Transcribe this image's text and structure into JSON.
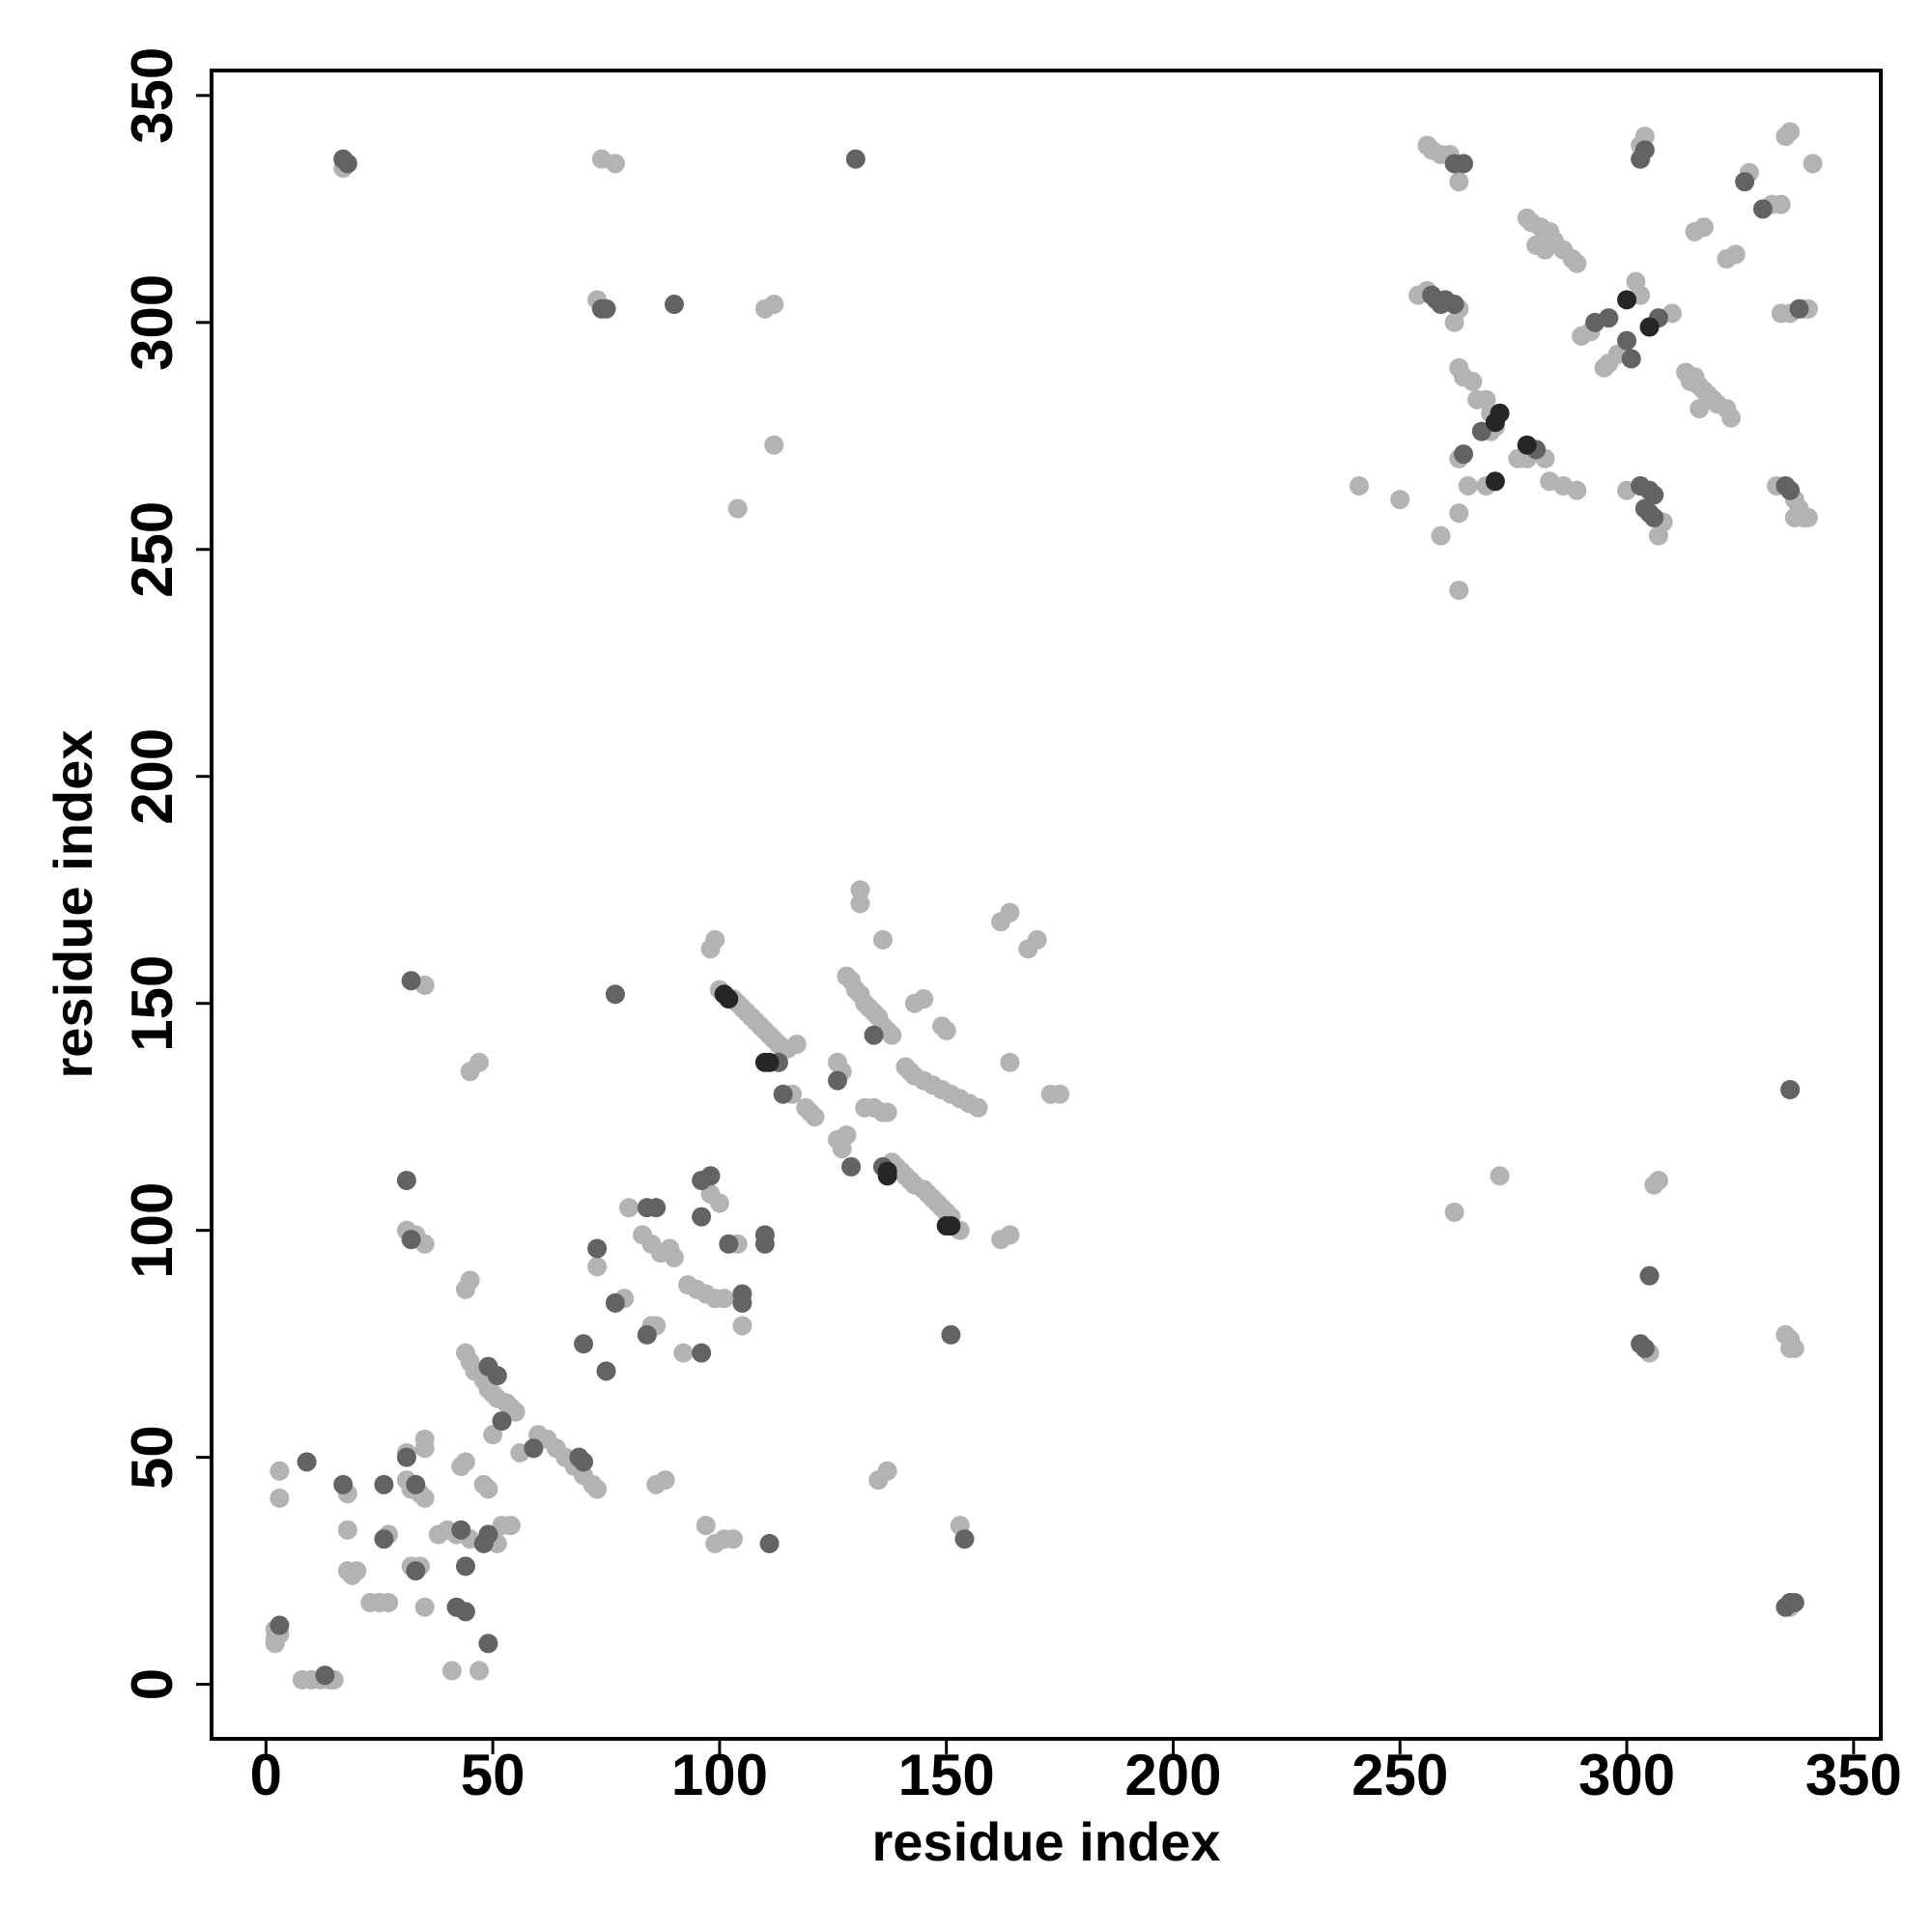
{
  "chart_data": {
    "type": "scatter",
    "xlabel": "residue index",
    "ylabel": "residue index",
    "xlim": [
      -12,
      356
    ],
    "ylim": [
      -12,
      355.5
    ],
    "xticks": [
      0,
      50,
      100,
      150,
      200,
      250,
      300,
      350
    ],
    "yticks": [
      0,
      50,
      100,
      150,
      200,
      250,
      300,
      350
    ],
    "grid": false,
    "series": [
      {
        "color": "#b3b3b3",
        "x": [
          2,
          2,
          3,
          2,
          8,
          10,
          12,
          14,
          15,
          3,
          3,
          18,
          18,
          18,
          19,
          20,
          23,
          25,
          27,
          27,
          31,
          31,
          32,
          34,
          35,
          32,
          34,
          35,
          31,
          33,
          35,
          35,
          35,
          35,
          38,
          40,
          42,
          45,
          41,
          47,
          44,
          43,
          44,
          45,
          45,
          47,
          44,
          45,
          46,
          48,
          49,
          50,
          51,
          53,
          54,
          55,
          50,
          48,
          49,
          51,
          52,
          54,
          56,
          60,
          62,
          64,
          66,
          68,
          70,
          72,
          73,
          73,
          79,
          80,
          85,
          86,
          83,
          85,
          87,
          89,
          90,
          86,
          88,
          92,
          93,
          95,
          97,
          99,
          101,
          98,
          100,
          99,
          101,
          103,
          97,
          104,
          105,
          98,
          99,
          100,
          103,
          104,
          105,
          106,
          107,
          108,
          109,
          110,
          111,
          112,
          113,
          115,
          117,
          116,
          119,
          120,
          121,
          112,
          110,
          112,
          104,
          126,
          127,
          128,
          126,
          127,
          128,
          129,
          130,
          131,
          132,
          133,
          134,
          135,
          136,
          137,
          138,
          131,
          131,
          132,
          134,
          136,
          137,
          136,
          138,
          139,
          140,
          141,
          142,
          143,
          145,
          146,
          147,
          148,
          149,
          150,
          151,
          141,
          142,
          143,
          145,
          147,
          149,
          151,
          153,
          155,
          157,
          143,
          145,
          149,
          150,
          153,
          153,
          135,
          137,
          162,
          164,
          162,
          164,
          168,
          170,
          164,
          173,
          175,
          17,
          74,
          77,
          73,
          241,
          250,
          254,
          256,
          256,
          257,
          259,
          261,
          263,
          262,
          263,
          263,
          264,
          266,
          267,
          263,
          265,
          259,
          263,
          263,
          269,
          270,
          271,
          270,
          269,
          276,
          278,
          282,
          278,
          279,
          281,
          283,
          284,
          286,
          288,
          289,
          280,
          282,
          283,
          286,
          289,
          290,
          292,
          295,
          296,
          298,
          303,
          302,
          310,
          300,
          307,
          308,
          304,
          303,
          313,
          314,
          315,
          316,
          317,
          318,
          319,
          320,
          322,
          323,
          316,
          315,
          317,
          322,
          324,
          327,
          332,
          334,
          333,
          337,
          338,
          334,
          336,
          339,
          340,
          337,
          339,
          340,
          335,
          336,
          341,
          262,
          272,
          306,
          307,
          305,
          335,
          336,
          336,
          337,
          336
        ],
        "y": [
          12,
          10,
          11,
          9,
          1,
          1,
          1,
          1,
          1,
          47,
          41,
          42,
          34,
          25,
          24,
          25,
          18,
          18,
          18,
          33,
          51,
          45,
          43,
          42,
          41,
          26,
          26,
          17,
          100,
          99,
          97,
          154,
          54,
          52,
          33,
          34,
          33,
          32,
          3,
          3,
          49,
          48,
          87,
          89,
          135,
          137,
          73,
          71,
          69,
          67,
          65,
          64,
          63,
          62,
          61,
          60,
          55,
          44,
          43,
          31,
          35,
          35,
          51,
          55,
          54,
          52,
          50,
          48,
          46,
          44,
          43,
          92,
          85,
          105,
          79,
          79,
          99,
          97,
          95,
          96,
          94,
          44,
          45,
          73,
          88,
          87,
          86,
          85,
          85,
          108,
          106,
          31,
          32,
          32,
          35,
          97,
          79,
          162,
          164,
          153,
          151,
          150,
          149,
          148,
          147,
          146,
          145,
          144,
          143,
          142,
          141,
          140,
          141,
          130,
          127,
          126,
          125,
          304,
          303,
          273,
          259,
          120,
          118,
          121,
          137,
          135,
          156,
          155,
          153,
          152,
          150,
          149,
          148,
          147,
          145,
          144,
          143,
          175,
          172,
          127,
          127,
          126,
          126,
          164,
          115,
          114,
          113,
          112,
          111,
          110,
          109,
          108,
          107,
          106,
          105,
          104,
          103,
          136,
          135,
          134,
          133,
          132,
          131,
          130,
          129,
          128,
          127,
          150,
          151,
          145,
          144,
          100,
          35,
          45,
          47,
          98,
          99,
          168,
          170,
          162,
          164,
          137,
          130,
          130,
          334,
          336,
          335,
          305,
          264,
          261,
          306,
          307,
          339,
          338,
          337,
          337,
          331,
          300,
          303,
          290,
          288,
          287,
          283,
          270,
          264,
          253,
          258,
          241,
          283,
          280,
          277,
          276,
          264,
          270,
          270,
          270,
          323,
          322,
          321,
          320,
          318,
          316,
          314,
          313,
          317,
          316,
          265,
          264,
          263,
          297,
          298,
          290,
          291,
          293,
          306,
          309,
          302,
          263,
          253,
          256,
          341,
          339,
          289,
          287,
          288,
          286,
          285,
          284,
          283,
          282,
          281,
          279,
          281,
          320,
          321,
          314,
          315,
          333,
          326,
          326,
          264,
          261,
          259,
          302,
          302,
          303,
          303,
          257,
          257,
          257,
          341,
          342,
          335,
          104,
          112,
          110,
          111,
          73,
          77,
          76,
          74,
          74,
          17
        ]
      },
      {
        "color": "#636363",
        "x": [
          3,
          13,
          9,
          17,
          26,
          26,
          31,
          33,
          33,
          31,
          32,
          32,
          43,
          44,
          42,
          44,
          49,
          51,
          52,
          49,
          48,
          49,
          59,
          69,
          70,
          70,
          73,
          75,
          77,
          84,
          84,
          86,
          96,
          96,
          96,
          98,
          111,
          102,
          110,
          105,
          105,
          113,
          114,
          129,
          126,
          134,
          136,
          151,
          154,
          77,
          18,
          17,
          130,
          74,
          75,
          90,
          257,
          258,
          259,
          260,
          262,
          262,
          264,
          264,
          268,
          280,
          293,
          296,
          300,
          301,
          307,
          303,
          305,
          306,
          304,
          305,
          306,
          304,
          303,
          326,
          330,
          335,
          336,
          338,
          336,
          305,
          303,
          304,
          335,
          336,
          337,
          110
        ],
        "y": [
          13,
          2,
          49,
          44,
          44,
          32,
          50,
          44,
          25,
          111,
          98,
          155,
          34,
          26,
          17,
          16,
          70,
          68,
          58,
          33,
          31,
          9,
          52,
          50,
          49,
          75,
          96,
          69,
          84,
          77,
          105,
          105,
          73,
          103,
          111,
          112,
          31,
          97,
          97,
          86,
          84,
          137,
          130,
          114,
          133,
          143,
          114,
          77,
          32,
          152,
          335,
          336,
          336,
          303,
          303,
          304,
          306,
          305,
          304,
          305,
          304,
          335,
          335,
          271,
          276,
          272,
          300,
          301,
          296,
          292,
          301,
          264,
          263,
          262,
          259,
          258,
          257,
          338,
          336,
          331,
          325,
          264,
          263,
          303,
          131,
          90,
          75,
          74,
          17,
          18,
          18,
          99
        ]
      },
      {
        "color": "#262626",
        "x": [
          101,
          102,
          110,
          111,
          137,
          137,
          150,
          151,
          272,
          271,
          271,
          278,
          300,
          305
        ],
        "y": [
          152,
          151,
          137,
          137,
          113,
          112,
          101,
          101,
          280,
          278,
          265,
          273,
          305,
          299
        ]
      }
    ]
  }
}
